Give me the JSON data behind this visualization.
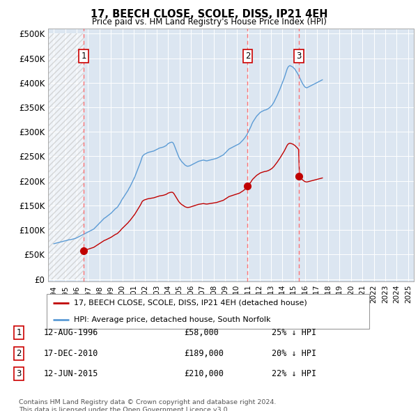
{
  "title": "17, BEECH CLOSE, SCOLE, DISS, IP21 4EH",
  "subtitle": "Price paid vs. HM Land Registry's House Price Index (HPI)",
  "ytick_values": [
    0,
    50000,
    100000,
    150000,
    200000,
    250000,
    300000,
    350000,
    400000,
    450000,
    500000
  ],
  "xlim": [
    1993.5,
    2025.5
  ],
  "ylim": [
    -5000,
    510000
  ],
  "transactions": [
    {
      "date": 1996.617,
      "price": 58000,
      "label": "1",
      "desc": "12-AUG-1996",
      "price_str": "£58,000",
      "note": "25% ↓ HPI"
    },
    {
      "date": 2010.956,
      "price": 189000,
      "label": "2",
      "desc": "17-DEC-2010",
      "price_str": "£189,000",
      "note": "20% ↓ HPI"
    },
    {
      "date": 2015.44,
      "price": 210000,
      "label": "3",
      "desc": "12-JUN-2015",
      "price_str": "£210,000",
      "note": "22% ↓ HPI"
    }
  ],
  "hpi_line_color": "#5B9BD5",
  "price_line_color": "#C00000",
  "vline_color": "#FF6666",
  "bg_color": "#DCE6F1",
  "legend_entries": [
    "17, BEECH CLOSE, SCOLE, DISS, IP21 4EH (detached house)",
    "HPI: Average price, detached house, South Norfolk"
  ],
  "copyright_text": "Contains HM Land Registry data © Crown copyright and database right 2024.\nThis data is licensed under the Open Government Licence v3.0.",
  "hpi_monthly": {
    "start_year": 1994.0,
    "step": 0.08333,
    "values": [
      72000,
      72500,
      73000,
      73500,
      74000,
      74500,
      75000,
      75500,
      76000,
      76500,
      77000,
      77500,
      78000,
      78500,
      79000,
      79500,
      80000,
      80200,
      80500,
      81000,
      81500,
      82000,
      82500,
      83000,
      84000,
      85000,
      86000,
      87000,
      88000,
      89000,
      90000,
      91000,
      92000,
      93000,
      94000,
      95000,
      96000,
      97000,
      98000,
      99000,
      100000,
      101000,
      102000,
      104000,
      106000,
      108000,
      110000,
      112000,
      114000,
      116000,
      118000,
      120000,
      122000,
      124000,
      125000,
      126500,
      128000,
      129500,
      131000,
      132500,
      134000,
      136000,
      138000,
      140000,
      142000,
      144000,
      145000,
      147000,
      150000,
      153000,
      156000,
      160000,
      163000,
      166000,
      169000,
      172000,
      175000,
      178000,
      181000,
      185000,
      188000,
      192000,
      196000,
      200000,
      204000,
      208000,
      213000,
      218000,
      223000,
      228000,
      233000,
      238000,
      244000,
      250000,
      252000,
      254000,
      255000,
      256000,
      257000,
      258000,
      258500,
      259000,
      259500,
      260000,
      260500,
      261000,
      262000,
      263000,
      264000,
      265000,
      266000,
      267000,
      267500,
      268000,
      268500,
      269000,
      270000,
      271000,
      272000,
      274000,
      276000,
      277000,
      278000,
      278500,
      279000,
      278000,
      275000,
      270000,
      265000,
      260000,
      255000,
      250000,
      246000,
      243000,
      240000,
      238000,
      236000,
      234000,
      232000,
      231000,
      230000,
      230000,
      230500,
      231000,
      232000,
      233000,
      234000,
      235000,
      236000,
      237000,
      238000,
      239000,
      240000,
      240500,
      241000,
      241500,
      242000,
      242500,
      242000,
      241500,
      241000,
      241000,
      241500,
      242000,
      242500,
      243000,
      243500,
      244000,
      244500,
      245000,
      245500,
      246000,
      247000,
      248000,
      249000,
      250000,
      251000,
      252000,
      253000,
      255000,
      257000,
      259000,
      261000,
      263000,
      265000,
      266000,
      267000,
      268000,
      269000,
      270000,
      271000,
      272000,
      273000,
      274000,
      275000,
      276000,
      278000,
      280000,
      282000,
      284000,
      286500,
      289000,
      292000,
      295000,
      299000,
      303000,
      307000,
      311000,
      316000,
      320000,
      323000,
      326000,
      329000,
      332000,
      334000,
      336000,
      338000,
      340000,
      341000,
      342000,
      343000,
      344000,
      344500,
      345000,
      346000,
      347000,
      348500,
      350000,
      352000,
      354000,
      357000,
      360000,
      364000,
      368000,
      372000,
      376000,
      381000,
      385000,
      390000,
      395000,
      400000,
      405000,
      410000,
      416000,
      422000,
      428000,
      432000,
      434000,
      435000,
      434000,
      433000,
      432000,
      430000,
      428000,
      425000,
      422000,
      419000,
      415000,
      411000,
      407000,
      403000,
      399000,
      396000,
      393000,
      391000,
      390000,
      390000,
      391000,
      392000,
      393000,
      394000,
      395000,
      396000,
      397000,
      398000,
      399000,
      400000,
      401000,
      402000,
      403000,
      404000,
      405000,
      406000
    ]
  }
}
